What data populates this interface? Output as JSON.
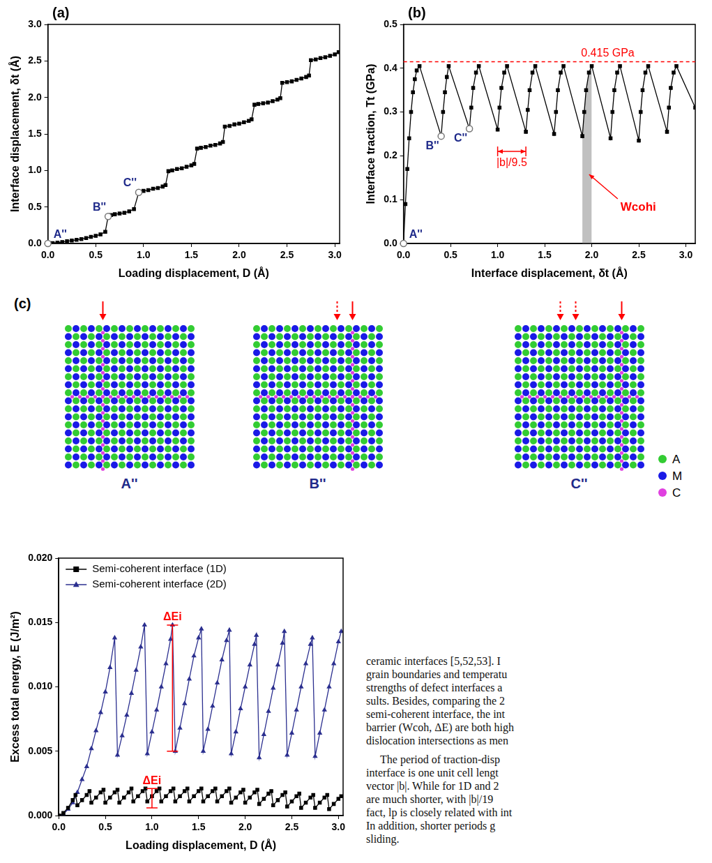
{
  "chart_data": [
    {
      "type": "line",
      "panel": "(a)",
      "x_label": "Loading displacement, D (Å)",
      "y_label": "Interface displacement, δt (Å)",
      "xlim": [
        0,
        3.05
      ],
      "xticks": [
        {
          "value": 0,
          "label": "0.0"
        },
        0.5,
        {
          "value": 1,
          "label": "1.0"
        },
        1.5,
        {
          "value": 2,
          "label": "2.0"
        },
        2.5,
        {
          "value": 3,
          "label": "3.0"
        }
      ],
      "ylim": [
        0,
        3.0
      ],
      "yticks": [
        {
          "value": 0,
          "label": "0.0"
        },
        0.5,
        {
          "value": 1,
          "label": "1.0"
        },
        1.5,
        {
          "value": 2,
          "label": "2.0"
        },
        2.5,
        {
          "value": 3,
          "label": "3.0"
        }
      ],
      "grid": false,
      "color": "#000000",
      "marker": "square",
      "x": [
        0,
        0.05,
        0.1,
        0.15,
        0.2,
        0.25,
        0.3,
        0.35,
        0.4,
        0.45,
        0.5,
        0.55,
        0.6,
        0.63,
        0.66,
        0.7,
        0.75,
        0.8,
        0.85,
        0.9,
        0.95,
        1.0,
        1.05,
        1.1,
        1.15,
        1.2,
        1.23,
        1.26,
        1.3,
        1.35,
        1.4,
        1.45,
        1.5,
        1.53,
        1.56,
        1.6,
        1.65,
        1.7,
        1.75,
        1.8,
        1.83,
        1.85,
        1.9,
        1.95,
        2.0,
        2.05,
        2.1,
        2.13,
        2.16,
        2.2,
        2.25,
        2.3,
        2.35,
        2.4,
        2.43,
        2.45,
        2.5,
        2.55,
        2.6,
        2.65,
        2.7,
        2.73,
        2.75,
        2.8,
        2.85,
        2.9,
        2.95,
        3.0,
        3.04
      ],
      "values": [
        0,
        0.005,
        0.012,
        0.02,
        0.03,
        0.04,
        0.05,
        0.06,
        0.075,
        0.09,
        0.105,
        0.125,
        0.16,
        0.37,
        0.39,
        0.4,
        0.41,
        0.42,
        0.44,
        0.47,
        0.7,
        0.72,
        0.73,
        0.75,
        0.76,
        0.78,
        0.8,
        0.99,
        1.0,
        1.02,
        1.03,
        1.05,
        1.07,
        1.09,
        1.3,
        1.31,
        1.32,
        1.34,
        1.35,
        1.37,
        1.39,
        1.6,
        1.61,
        1.63,
        1.64,
        1.66,
        1.68,
        1.7,
        1.9,
        1.91,
        1.92,
        1.93,
        1.95,
        1.97,
        1.99,
        2.2,
        2.21,
        2.22,
        2.24,
        2.26,
        2.28,
        2.3,
        2.51,
        2.52,
        2.54,
        2.55,
        2.57,
        2.59,
        2.62
      ],
      "annotations": {
        "color": "#1f2a8a",
        "points": [
          {
            "text": "A''",
            "x": 0,
            "y": 0
          },
          {
            "text": "B''",
            "x": 0.63,
            "y": 0.37
          },
          {
            "text": "C''",
            "x": 0.95,
            "y": 0.7
          }
        ]
      }
    },
    {
      "type": "line",
      "panel": "(b)",
      "x_label": "Interface displacement, δt (Å)",
      "y_label": "Interface traction, Tt (GPa)",
      "xlim": [
        0,
        3.1
      ],
      "xticks": [
        {
          "value": 0,
          "label": "0.0"
        },
        0.5,
        {
          "value": 1,
          "label": "1.0"
        },
        1.5,
        {
          "value": 2,
          "label": "2.0"
        },
        2.5,
        {
          "value": 3,
          "label": "3.0"
        }
      ],
      "ylim": [
        0,
        0.5
      ],
      "yticks": [
        {
          "value": 0,
          "label": "0.0"
        },
        0.1,
        0.2,
        0.3,
        0.4,
        0.5
      ],
      "grid": false,
      "color": "#000000",
      "marker": "square",
      "x": [
        0,
        0.02,
        0.04,
        0.06,
        0.08,
        0.1,
        0.12,
        0.14,
        0.17,
        0.4,
        0.42,
        0.44,
        0.46,
        0.48,
        0.7,
        0.72,
        0.74,
        0.77,
        0.8,
        1.0,
        1.02,
        1.04,
        1.07,
        1.1,
        1.3,
        1.32,
        1.34,
        1.37,
        1.4,
        1.6,
        1.62,
        1.64,
        1.67,
        1.7,
        1.9,
        1.92,
        1.94,
        1.97,
        2.0,
        2.2,
        2.22,
        2.24,
        2.27,
        2.3,
        2.5,
        2.52,
        2.54,
        2.57,
        2.6,
        2.8,
        2.82,
        2.84,
        2.87,
        2.9,
        3.1
      ],
      "values": [
        0,
        0.09,
        0.17,
        0.24,
        0.3,
        0.345,
        0.375,
        0.395,
        0.405,
        0.245,
        0.3,
        0.345,
        0.38,
        0.405,
        0.262,
        0.31,
        0.355,
        0.39,
        0.405,
        0.26,
        0.31,
        0.355,
        0.39,
        0.405,
        0.255,
        0.305,
        0.35,
        0.39,
        0.405,
        0.25,
        0.3,
        0.35,
        0.39,
        0.405,
        0.245,
        0.3,
        0.35,
        0.39,
        0.405,
        0.24,
        0.3,
        0.35,
        0.39,
        0.405,
        0.235,
        0.3,
        0.35,
        0.39,
        0.405,
        0.255,
        0.31,
        0.355,
        0.39,
        0.405,
        0.31
      ],
      "annotations": {
        "color": "#1f2a8a",
        "points": [
          {
            "text": "A''",
            "x": 0,
            "y": 0
          },
          {
            "text": "B''",
            "x": 0.4,
            "y": 0.245
          },
          {
            "text": "C''",
            "x": 0.7,
            "y": 0.262
          }
        ]
      },
      "hline": {
        "value": 0.415,
        "label": "0.415 GPa",
        "color": "#ff0000",
        "line_style": "dashed"
      },
      "spans": [
        {
          "text": "|b|/9.5",
          "x": [
            1.0,
            1.3
          ],
          "y": 0.21,
          "color": "#ff0000"
        }
      ],
      "shaded": {
        "text": "Wcohi",
        "color": "#c0c0c0",
        "text_color": "#ff0000",
        "x": [
          1.9,
          1.92,
          1.94,
          1.97,
          2.0
        ],
        "values": [
          0.245,
          0.3,
          0.35,
          0.39,
          0.405
        ]
      }
    },
    {
      "type": "line",
      "x_label": "Loading displacement, D (Å)",
      "y_label": "Excess total energy, E (J/m²)",
      "xlim": [
        0,
        3.05
      ],
      "xticks": [
        {
          "value": 0,
          "label": "0.0"
        },
        0.5,
        {
          "value": 1,
          "label": "1.0"
        },
        1.5,
        {
          "value": 2,
          "label": "2.0"
        },
        2.5,
        {
          "value": 3,
          "label": "3.0"
        }
      ],
      "ylim": [
        0,
        0.02
      ],
      "yticks": [
        {
          "value": 0,
          "label": "0.000"
        },
        {
          "value": 0.005,
          "label": "0.005"
        },
        {
          "value": 0.01,
          "label": "0.010"
        },
        {
          "value": 0.015,
          "label": "0.015"
        },
        {
          "value": 0.02,
          "label": "0.020"
        }
      ],
      "grid": false,
      "legend": "top-left",
      "series": [
        {
          "name": "Semi-coherent interface (1D)",
          "color": "#000000",
          "marker": "square",
          "x": [
            0,
            0.05,
            0.1,
            0.15,
            0.18,
            0.2,
            0.25,
            0.3,
            0.33,
            0.35,
            0.4,
            0.45,
            0.48,
            0.5,
            0.55,
            0.6,
            0.63,
            0.65,
            0.7,
            0.75,
            0.78,
            0.8,
            0.85,
            0.9,
            0.93,
            0.95,
            1.0,
            1.05,
            1.08,
            1.1,
            1.15,
            1.2,
            1.23,
            1.25,
            1.3,
            1.35,
            1.38,
            1.4,
            1.45,
            1.5,
            1.53,
            1.55,
            1.6,
            1.65,
            1.68,
            1.7,
            1.75,
            1.8,
            1.83,
            1.85,
            1.9,
            1.95,
            1.98,
            2.0,
            2.05,
            2.1,
            2.13,
            2.15,
            2.2,
            2.25,
            2.28,
            2.3,
            2.35,
            2.4,
            2.43,
            2.45,
            2.5,
            2.55,
            2.58,
            2.6,
            2.65,
            2.7,
            2.73,
            2.75,
            2.8,
            2.85,
            2.88,
            2.9,
            2.95,
            3.0,
            3.03
          ],
          "values": [
            0,
            0.0002,
            0.0006,
            0.0012,
            0.0016,
            0.0008,
            0.0012,
            0.0016,
            0.0019,
            0.001,
            0.0014,
            0.0018,
            0.002,
            0.001,
            0.0014,
            0.0018,
            0.002,
            0.001,
            0.0014,
            0.0018,
            0.0021,
            0.0011,
            0.0015,
            0.0019,
            0.0021,
            0.0011,
            0.0015,
            0.0019,
            0.0021,
            0.0011,
            0.0015,
            0.0019,
            0.0021,
            0.0011,
            0.0015,
            0.0019,
            0.0021,
            0.0011,
            0.0015,
            0.0019,
            0.0021,
            0.0011,
            0.0015,
            0.0019,
            0.0021,
            0.0011,
            0.0015,
            0.0019,
            0.0021,
            0.001,
            0.0014,
            0.0018,
            0.002,
            0.001,
            0.0014,
            0.0018,
            0.002,
            0.0009,
            0.0013,
            0.0017,
            0.0019,
            0.0008,
            0.0012,
            0.0016,
            0.0018,
            0.0007,
            0.0011,
            0.0015,
            0.0017,
            0.0006,
            0.001,
            0.0014,
            0.0016,
            0.0006,
            0.001,
            0.0014,
            0.0016,
            0.0005,
            0.0009,
            0.0013,
            0.0015
          ]
        },
        {
          "name": "Semi-coherent interface (2D)",
          "color": "#2b2f8f",
          "marker": "triangle",
          "x": [
            0,
            0.05,
            0.1,
            0.15,
            0.2,
            0.25,
            0.3,
            0.35,
            0.4,
            0.45,
            0.5,
            0.55,
            0.6,
            0.63,
            0.68,
            0.73,
            0.78,
            0.83,
            0.88,
            0.92,
            0.95,
            1.0,
            1.05,
            1.1,
            1.15,
            1.2,
            1.22,
            1.25,
            1.3,
            1.35,
            1.4,
            1.45,
            1.5,
            1.53,
            1.55,
            1.6,
            1.65,
            1.7,
            1.75,
            1.8,
            1.83,
            1.85,
            1.9,
            1.95,
            2.0,
            2.05,
            2.1,
            2.12,
            2.15,
            2.2,
            2.25,
            2.3,
            2.35,
            2.4,
            2.42,
            2.45,
            2.5,
            2.55,
            2.6,
            2.65,
            2.7,
            2.72,
            2.75,
            2.8,
            2.85,
            2.9,
            2.95,
            3.0,
            3.03
          ],
          "values": [
            0,
            0.0001,
            0.0005,
            0.001,
            0.0018,
            0.0028,
            0.0038,
            0.0052,
            0.0066,
            0.008,
            0.0096,
            0.0115,
            0.0138,
            0.0047,
            0.0062,
            0.0078,
            0.0095,
            0.0113,
            0.0131,
            0.0148,
            0.0048,
            0.0065,
            0.0082,
            0.01,
            0.0118,
            0.0137,
            0.0148,
            0.005,
            0.0068,
            0.0087,
            0.0106,
            0.0124,
            0.0138,
            0.0145,
            0.005,
            0.0067,
            0.0085,
            0.0103,
            0.0121,
            0.0136,
            0.0144,
            0.0048,
            0.0065,
            0.0083,
            0.01,
            0.0117,
            0.0133,
            0.014,
            0.0045,
            0.0063,
            0.0081,
            0.0099,
            0.0117,
            0.0134,
            0.0143,
            0.0047,
            0.0064,
            0.0082,
            0.01,
            0.0118,
            0.0133,
            0.0138,
            0.0046,
            0.0064,
            0.0082,
            0.01,
            0.0118,
            0.0135,
            0.0143
          ]
        }
      ],
      "ranges": [
        {
          "text": "ΔEi",
          "x": 1.22,
          "y": [
            0.005,
            0.0148
          ],
          "color": "#ff0000"
        },
        {
          "text": "ΔEi",
          "x": 1.0,
          "y": [
            0.0006,
            0.0021
          ],
          "color": "#ff0000"
        }
      ]
    }
  ],
  "atom_panel": {
    "panel": "(c)",
    "images": [
      {
        "label": "A''"
      },
      {
        "label": "B''"
      },
      {
        "label": "C''"
      }
    ],
    "label_color": "#1f2a8a",
    "arrow_color": "#ff0000",
    "legend": [
      {
        "label": "A",
        "color": "#33cc33"
      },
      {
        "label": "M",
        "color": "#1a1ae6"
      },
      {
        "label": "C",
        "color": "#e040e0"
      }
    ]
  },
  "body_text": {
    "paragraphs": [
      [
        "ceramic interfaces [5,52,53]. I",
        "grain boundaries and temperatu",
        "strengths of defect interfaces a",
        "sults. Besides, comparing the 2",
        "semi-coherent interface, the int",
        "barrier (Wcoh, ΔE) are both high",
        "dislocation intersections as men"
      ],
      [
        "The period of traction-disp",
        "interface is one unit cell lengt",
        "vector |b|. While for 1D and 2",
        "are much shorter, with |b|/19",
        "fact, lp is closely related with int",
        "In addition, shorter periods g",
        "sliding."
      ]
    ]
  }
}
